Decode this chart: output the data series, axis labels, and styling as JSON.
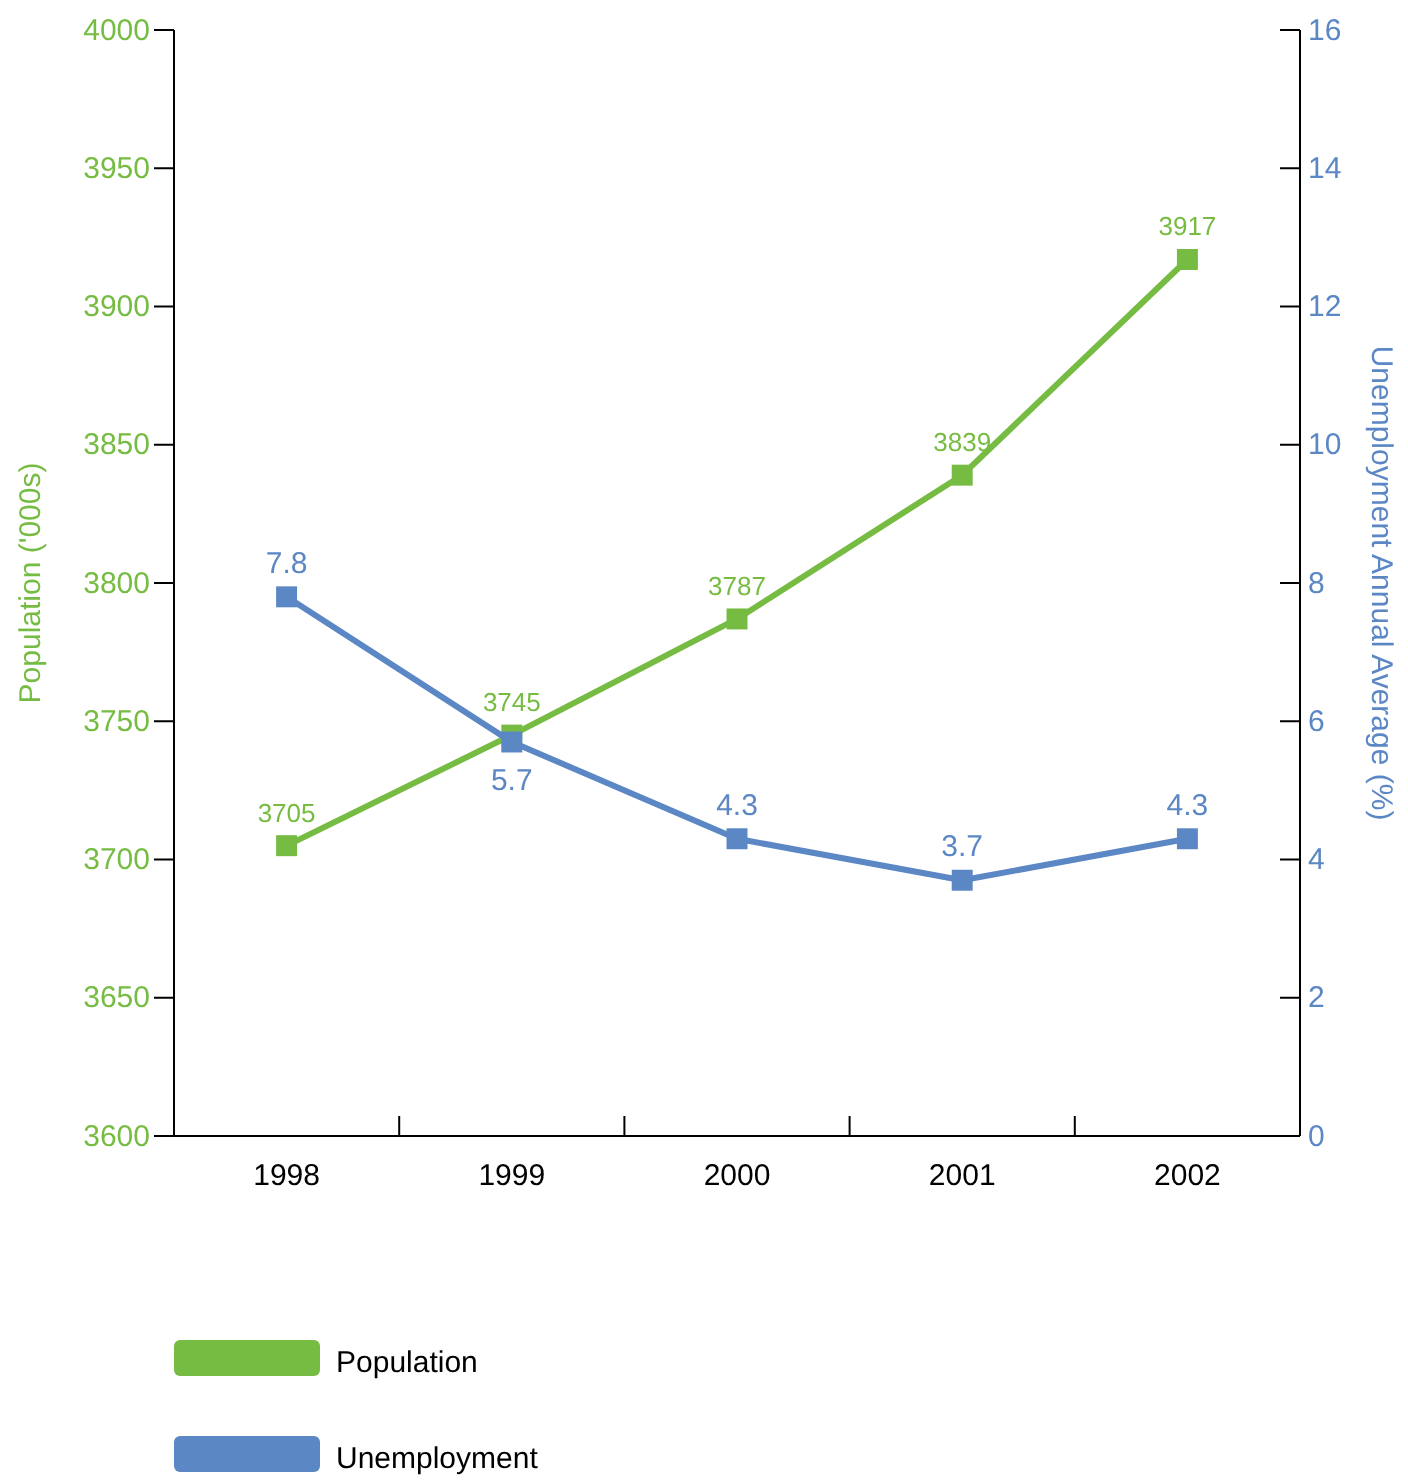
{
  "chart_data": {
    "type": "line",
    "categories": [
      "1998",
      "1999",
      "2000",
      "2001",
      "2002"
    ],
    "series": [
      {
        "name": "Population",
        "color": "#76bc43",
        "values": [
          3705,
          3745,
          3787,
          3839,
          3917
        ]
      },
      {
        "name": "Unemployment",
        "color": "#5b87c5",
        "axis": "y2",
        "values": [
          7.8,
          5.7,
          4.3,
          3.7,
          4.3
        ]
      }
    ],
    "ylabel": "Population ('000s)",
    "y2label": "Unemployment Annual Average (%)",
    "ylim": [
      3600,
      4000
    ],
    "yticks": [
      3600,
      3650,
      3700,
      3750,
      3800,
      3850,
      3900,
      3950,
      4000
    ],
    "y2lim": [
      0,
      16
    ],
    "y2ticks": [
      0,
      2,
      4,
      6,
      8,
      10,
      12,
      14,
      16
    ],
    "data_labels": true,
    "marker": "square",
    "line_style": "solid",
    "legend": "bottom",
    "grid": false
  }
}
